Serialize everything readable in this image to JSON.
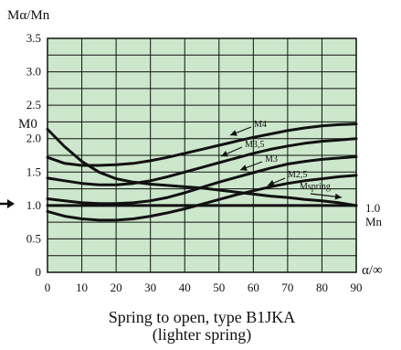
{
  "chart_data": {
    "type": "line",
    "ylabel": "Mα/Mn",
    "xlabel": "α/∞",
    "caption_line1": "Spring to open, type B1JKA",
    "caption_line2": "(lighter spring)",
    "x_ticks": [
      "0",
      "10",
      "20",
      "30",
      "40",
      "50",
      "60",
      "70",
      "80",
      "90"
    ],
    "y_ticks": [
      "0",
      "0.5",
      "1.0",
      "1.5",
      "2.0",
      "2.5",
      "3.0",
      "3.5"
    ],
    "xlim": [
      0,
      90
    ],
    "ylim": [
      0,
      3.5
    ],
    "grid": true,
    "m0_label": "M0",
    "mn_label_top": "1.0",
    "mn_label_bottom": "Mn",
    "series": [
      {
        "name": "M4",
        "x": [
          0,
          5,
          10,
          15,
          20,
          25,
          30,
          35,
          40,
          45,
          50,
          55,
          60,
          65,
          70,
          75,
          80,
          85,
          90
        ],
        "y": [
          1.72,
          1.63,
          1.6,
          1.6,
          1.61,
          1.63,
          1.67,
          1.72,
          1.78,
          1.84,
          1.9,
          1.96,
          2.02,
          2.07,
          2.12,
          2.16,
          2.19,
          2.21,
          2.22
        ]
      },
      {
        "name": "M3,5",
        "x": [
          0,
          5,
          10,
          15,
          20,
          25,
          30,
          35,
          40,
          45,
          50,
          55,
          60,
          65,
          70,
          75,
          80,
          85,
          90
        ],
        "y": [
          1.41,
          1.37,
          1.33,
          1.31,
          1.31,
          1.33,
          1.37,
          1.43,
          1.5,
          1.57,
          1.64,
          1.71,
          1.78,
          1.84,
          1.89,
          1.93,
          1.96,
          1.98,
          2.0
        ]
      },
      {
        "name": "M3",
        "x": [
          0,
          5,
          10,
          15,
          20,
          25,
          30,
          35,
          40,
          45,
          50,
          55,
          60,
          65,
          70,
          75,
          80,
          85,
          90
        ],
        "y": [
          1.1,
          1.07,
          1.04,
          1.03,
          1.03,
          1.04,
          1.07,
          1.12,
          1.19,
          1.27,
          1.35,
          1.42,
          1.49,
          1.56,
          1.62,
          1.66,
          1.69,
          1.71,
          1.73
        ]
      },
      {
        "name": "M2,5",
        "x": [
          0,
          5,
          10,
          15,
          20,
          25,
          30,
          35,
          40,
          45,
          50,
          55,
          60,
          65,
          70,
          75,
          80,
          85,
          90
        ],
        "y": [
          0.91,
          0.84,
          0.8,
          0.78,
          0.78,
          0.8,
          0.84,
          0.89,
          0.95,
          1.02,
          1.09,
          1.16,
          1.22,
          1.28,
          1.33,
          1.37,
          1.4,
          1.43,
          1.45
        ]
      },
      {
        "name": "Mspring",
        "x": [
          0,
          5,
          10,
          15,
          20,
          25,
          30,
          35,
          40,
          45,
          50,
          55,
          60,
          65,
          70,
          75,
          80,
          85,
          90
        ],
        "y": [
          2.14,
          1.88,
          1.66,
          1.5,
          1.4,
          1.35,
          1.32,
          1.3,
          1.28,
          1.26,
          1.23,
          1.2,
          1.17,
          1.14,
          1.12,
          1.09,
          1.07,
          1.04,
          1.0
        ]
      },
      {
        "name": "Mn",
        "x": [
          0,
          90
        ],
        "y": [
          1.0,
          1.0
        ]
      }
    ]
  }
}
